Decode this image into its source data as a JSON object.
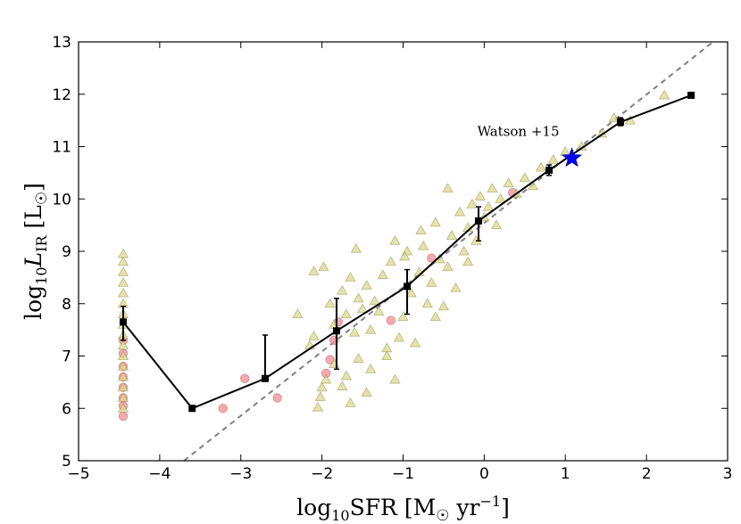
{
  "chart_data": {
    "type": "scatter",
    "xlabel": "log10SFR [M☉ yr−1]",
    "ylabel": "log10LIR [L☉]",
    "xlabel_parts": {
      "main": "log",
      "sub": "10",
      "text": "SFR [M",
      "sun": "☉",
      "unit": " yr",
      "exp": "−1",
      "close": "]"
    },
    "ylabel_parts": {
      "main": "log",
      "sub": "10",
      "var": "L",
      "varsub": "IR",
      "open": " [L",
      "sun": "☉",
      "close": "]"
    },
    "xlim": [
      -5,
      3
    ],
    "ylim": [
      5,
      13
    ],
    "xticks": [
      -5,
      -4,
      -3,
      -2,
      -1,
      0,
      1,
      2,
      3
    ],
    "xtick_labels": [
      "−5",
      "−4",
      "−3",
      "−2",
      "−1",
      "0",
      "1",
      "2",
      "3"
    ],
    "yticks": [
      5,
      6,
      7,
      8,
      9,
      10,
      11,
      12,
      13
    ],
    "ytick_labels": [
      "5",
      "6",
      "7",
      "8",
      "9",
      "10",
      "11",
      "12",
      "13"
    ],
    "grid": false,
    "colors": {
      "triangle_fill": "#d8d78a",
      "triangle_stroke": "#8a8a3c",
      "circle_fill": "#ef8f96",
      "circle_stroke": "#c45a62",
      "median_line": "#000000",
      "one_to_one": "#808080",
      "star": "#0000ff"
    },
    "series": [
      {
        "name": "median",
        "style": "line-square-errorbar",
        "points": [
          {
            "x": -4.45,
            "y": 7.65,
            "ylo": 7.3,
            "yhi": 7.95
          },
          {
            "x": -3.6,
            "y": 6.0
          },
          {
            "x": -2.7,
            "y": 6.57,
            "ylo": 6.57,
            "yhi": 7.4
          },
          {
            "x": -1.82,
            "y": 7.48,
            "ylo": 6.75,
            "yhi": 8.1
          },
          {
            "x": -0.95,
            "y": 8.33,
            "ylo": 7.8,
            "yhi": 8.65
          },
          {
            "x": -0.07,
            "y": 9.58,
            "ylo": 9.2,
            "yhi": 9.85
          },
          {
            "x": 0.8,
            "y": 10.55,
            "ylo": 10.45,
            "yhi": 10.65
          },
          {
            "x": 1.68,
            "y": 11.47,
            "ylo": 11.4,
            "yhi": 11.55
          },
          {
            "x": 2.55,
            "y": 11.98
          }
        ]
      },
      {
        "name": "one-to-one relation",
        "style": "dashed-line",
        "points": [
          {
            "x": -3.7,
            "y": 5.0
          },
          {
            "x": 2.82,
            "y": 13.0
          }
        ]
      },
      {
        "name": "galaxies",
        "style": "triangle",
        "points": [
          {
            "x": -4.45,
            "y": 6.0
          },
          {
            "x": -4.45,
            "y": 6.2
          },
          {
            "x": -4.45,
            "y": 6.4
          },
          {
            "x": -4.45,
            "y": 6.6
          },
          {
            "x": -4.45,
            "y": 6.8
          },
          {
            "x": -4.45,
            "y": 7.0
          },
          {
            "x": -4.45,
            "y": 7.2
          },
          {
            "x": -4.45,
            "y": 7.4
          },
          {
            "x": -4.45,
            "y": 7.6
          },
          {
            "x": -4.45,
            "y": 7.8
          },
          {
            "x": -4.45,
            "y": 8.0
          },
          {
            "x": -4.45,
            "y": 8.2
          },
          {
            "x": -4.45,
            "y": 8.4
          },
          {
            "x": -4.45,
            "y": 8.6
          },
          {
            "x": -4.45,
            "y": 8.8
          },
          {
            "x": -4.45,
            "y": 8.95
          },
          {
            "x": -2.05,
            "y": 6.02
          },
          {
            "x": -2.02,
            "y": 6.22
          },
          {
            "x": -2.0,
            "y": 6.4
          },
          {
            "x": -1.95,
            "y": 6.55
          },
          {
            "x": -1.85,
            "y": 6.85
          },
          {
            "x": -1.75,
            "y": 6.42
          },
          {
            "x": -1.7,
            "y": 6.62
          },
          {
            "x": -1.65,
            "y": 6.1
          },
          {
            "x": -1.55,
            "y": 6.95
          },
          {
            "x": -1.45,
            "y": 6.3
          },
          {
            "x": -1.4,
            "y": 6.75
          },
          {
            "x": -1.2,
            "y": 7.15
          },
          {
            "x": -2.15,
            "y": 7.2
          },
          {
            "x": -2.1,
            "y": 8.62
          },
          {
            "x": -1.98,
            "y": 8.7
          },
          {
            "x": -1.9,
            "y": 8.0
          },
          {
            "x": -1.85,
            "y": 7.6
          },
          {
            "x": -1.75,
            "y": 8.25
          },
          {
            "x": -1.7,
            "y": 7.8
          },
          {
            "x": -1.65,
            "y": 8.5
          },
          {
            "x": -1.6,
            "y": 7.45
          },
          {
            "x": -1.55,
            "y": 8.1
          },
          {
            "x": -1.5,
            "y": 7.9
          },
          {
            "x": -1.45,
            "y": 8.35
          },
          {
            "x": -1.4,
            "y": 7.5
          },
          {
            "x": -1.35,
            "y": 8.05
          },
          {
            "x": -1.3,
            "y": 7.85
          },
          {
            "x": -1.25,
            "y": 8.55
          },
          {
            "x": -1.2,
            "y": 7.0
          },
          {
            "x": -1.15,
            "y": 8.8
          },
          {
            "x": -1.1,
            "y": 9.2
          },
          {
            "x": -1.05,
            "y": 7.35
          },
          {
            "x": -1.0,
            "y": 7.75
          },
          {
            "x": -0.95,
            "y": 9.0
          },
          {
            "x": -0.9,
            "y": 8.2
          },
          {
            "x": -0.85,
            "y": 7.25
          },
          {
            "x": -0.8,
            "y": 8.6
          },
          {
            "x": -0.75,
            "y": 9.1
          },
          {
            "x": -0.7,
            "y": 8.0
          },
          {
            "x": -0.65,
            "y": 8.4
          },
          {
            "x": -0.6,
            "y": 9.55
          },
          {
            "x": -0.55,
            "y": 8.85
          },
          {
            "x": -0.5,
            "y": 7.95
          },
          {
            "x": -0.45,
            "y": 8.7
          },
          {
            "x": -0.4,
            "y": 9.3
          },
          {
            "x": -0.35,
            "y": 8.3
          },
          {
            "x": -0.3,
            "y": 9.75
          },
          {
            "x": -0.25,
            "y": 9.0
          },
          {
            "x": -0.2,
            "y": 9.45
          },
          {
            "x": -0.15,
            "y": 9.9
          },
          {
            "x": -0.1,
            "y": 9.2
          },
          {
            "x": -0.05,
            "y": 10.05
          },
          {
            "x": 0.0,
            "y": 9.65
          },
          {
            "x": 0.05,
            "y": 9.85
          },
          {
            "x": 0.1,
            "y": 10.2
          },
          {
            "x": 0.15,
            "y": 9.5
          },
          {
            "x": 0.2,
            "y": 10.0
          },
          {
            "x": 0.3,
            "y": 10.3
          },
          {
            "x": 0.4,
            "y": 10.1
          },
          {
            "x": 0.5,
            "y": 10.4
          },
          {
            "x": 0.6,
            "y": 10.25
          },
          {
            "x": 0.7,
            "y": 10.6
          },
          {
            "x": 0.85,
            "y": 10.75
          },
          {
            "x": 1.0,
            "y": 10.9
          },
          {
            "x": 1.2,
            "y": 11.0
          },
          {
            "x": 1.45,
            "y": 11.25
          },
          {
            "x": 1.6,
            "y": 11.55
          },
          {
            "x": 1.8,
            "y": 11.5
          },
          {
            "x": 2.22,
            "y": 11.98
          },
          {
            "x": -2.3,
            "y": 7.8
          },
          {
            "x": -0.2,
            "y": 8.8
          },
          {
            "x": -1.1,
            "y": 6.55
          },
          {
            "x": -0.6,
            "y": 7.75
          },
          {
            "x": -1.58,
            "y": 9.05
          },
          {
            "x": -2.1,
            "y": 7.38
          },
          {
            "x": -0.45,
            "y": 10.2
          },
          {
            "x": -0.98,
            "y": 8.9
          },
          {
            "x": -0.78,
            "y": 9.4
          }
        ]
      },
      {
        "name": "galaxies",
        "style": "circle",
        "points": [
          {
            "x": -4.45,
            "y": 5.85
          },
          {
            "x": -4.45,
            "y": 6.05
          },
          {
            "x": -4.45,
            "y": 6.2
          },
          {
            "x": -4.45,
            "y": 6.4
          },
          {
            "x": -4.45,
            "y": 6.6
          },
          {
            "x": -4.45,
            "y": 6.8
          },
          {
            "x": -4.45,
            "y": 7.05
          },
          {
            "x": -4.45,
            "y": 7.3
          },
          {
            "x": -3.22,
            "y": 6.0
          },
          {
            "x": -2.95,
            "y": 6.57
          },
          {
            "x": -2.55,
            "y": 6.2
          },
          {
            "x": -1.95,
            "y": 6.67
          },
          {
            "x": -1.9,
            "y": 6.93
          },
          {
            "x": -1.85,
            "y": 7.3
          },
          {
            "x": -1.8,
            "y": 7.65
          },
          {
            "x": -1.15,
            "y": 7.68
          },
          {
            "x": -0.65,
            "y": 8.87
          },
          {
            "x": 0.35,
            "y": 10.12
          }
        ]
      }
    ],
    "annotations": [
      {
        "text": "Watson +15",
        "x": 1.08,
        "y": 10.78,
        "marker": "star"
      }
    ]
  }
}
